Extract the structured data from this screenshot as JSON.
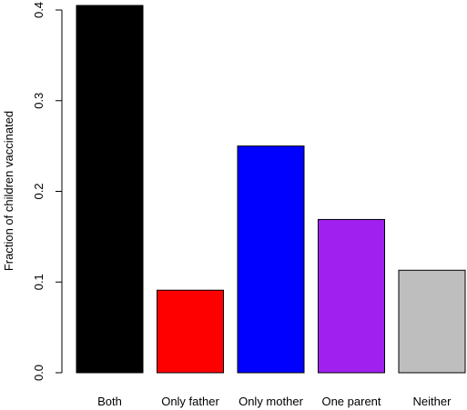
{
  "chart_data": {
    "type": "bar",
    "categories": [
      "Both",
      "Only father",
      "Only mother",
      "One parent",
      "Neither"
    ],
    "values": [
      0.405,
      0.091,
      0.25,
      0.169,
      0.113
    ],
    "colors": [
      "#000000",
      "#ff0000",
      "#0000ff",
      "#a020f0",
      "#bebebe"
    ],
    "title": "",
    "xlabel": "",
    "ylabel": "Fraction of children vaccinated",
    "ylim": [
      0,
      0.4
    ],
    "yticks": [
      "0.0",
      "0.1",
      "0.2",
      "0.3",
      "0.4"
    ],
    "grid": false,
    "legend": "none"
  }
}
